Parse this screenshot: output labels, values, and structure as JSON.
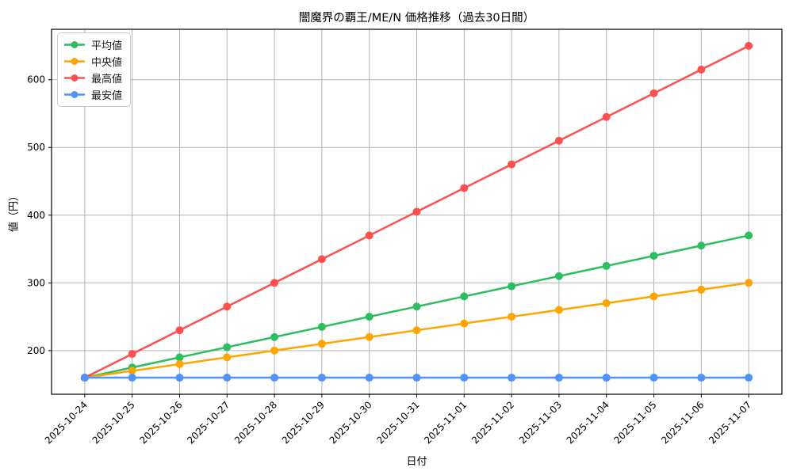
{
  "chart_data": {
    "type": "line",
    "title": "闇魔界の覇王/ME/N 価格推移（過去30日間）",
    "xlabel": "日付",
    "ylabel": "値（円）",
    "x": [
      "2025-10-24",
      "2025-10-25",
      "2025-10-26",
      "2025-10-27",
      "2025-10-28",
      "2025-10-29",
      "2025-10-30",
      "2025-10-31",
      "2025-11-01",
      "2025-11-02",
      "2025-11-03",
      "2025-11-04",
      "2025-11-05",
      "2025-11-06",
      "2025-11-07"
    ],
    "series": [
      {
        "id": "average",
        "name": "平均値",
        "color": "#2dbe60",
        "values": [
          160,
          175,
          190,
          205,
          220,
          235,
          250,
          265,
          280,
          295,
          310,
          325,
          340,
          355,
          370
        ]
      },
      {
        "id": "median",
        "name": "中央値",
        "color": "#ffa502",
        "values": [
          160,
          170,
          180,
          190,
          200,
          210,
          220,
          230,
          240,
          250,
          260,
          270,
          280,
          290,
          300
        ]
      },
      {
        "id": "max",
        "name": "最高値",
        "color": "#ff5050",
        "values": [
          160,
          195,
          230,
          265,
          300,
          335,
          370,
          405,
          440,
          475,
          510,
          545,
          580,
          615,
          650
        ]
      },
      {
        "id": "min",
        "name": "最安値",
        "color": "#4d94ff",
        "values": [
          160,
          160,
          160,
          160,
          160,
          160,
          160,
          160,
          160,
          160,
          160,
          160,
          160,
          160,
          160
        ]
      }
    ],
    "yticks": [
      200,
      300,
      400,
      500,
      600
    ],
    "ylim": [
      135.5,
      674.5
    ],
    "xlim": [
      -0.7,
      14.7
    ],
    "grid": true,
    "legend_position": "upper-left",
    "grid_color": "#b3b3b3",
    "line_width": 2.5,
    "marker_radius": 5
  }
}
